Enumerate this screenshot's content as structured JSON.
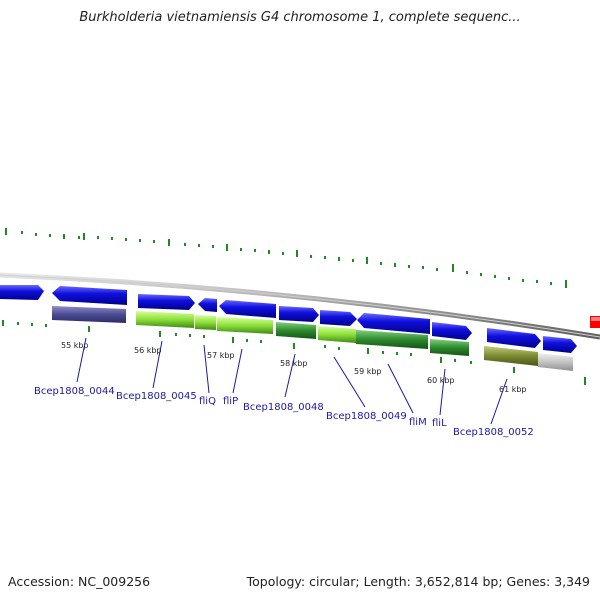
{
  "title": "Burkholderia vietnamiensis G4 chromosome 1, complete sequenc...",
  "footer": {
    "accession": "Accession: NC_009256",
    "topology": "Topology: circular; Length: 3,652,814 bp; Genes: 3,349"
  },
  "colors": {
    "cds_forward": "#1010e0",
    "cds_reverse": "#1010e0",
    "backbone": "#9a9a9a",
    "ticks": "#1f8a1f",
    "cog_purple": "#4b4b92",
    "cog_light_green": "#8ce03a",
    "cog_dark_green": "#2e8b2e",
    "cog_olive": "#7a8a30",
    "cog_grey": "#bdbdbd",
    "marker_red": "#ff0000",
    "label": "#1a1aa6"
  },
  "tick_labels": [
    "55 kbp",
    "56 kbp",
    "57 kbp",
    "58 kbp",
    "59 kbp",
    "60 kbp",
    "61 kbp"
  ],
  "gene_labels": [
    "Bcep1808_0044",
    "Bcep1808_0045",
    "fliQ",
    "fliP",
    "Bcep1808_0048",
    "Bcep1808_0049",
    "fliM",
    "fliL",
    "Bcep1808_0052"
  ]
}
